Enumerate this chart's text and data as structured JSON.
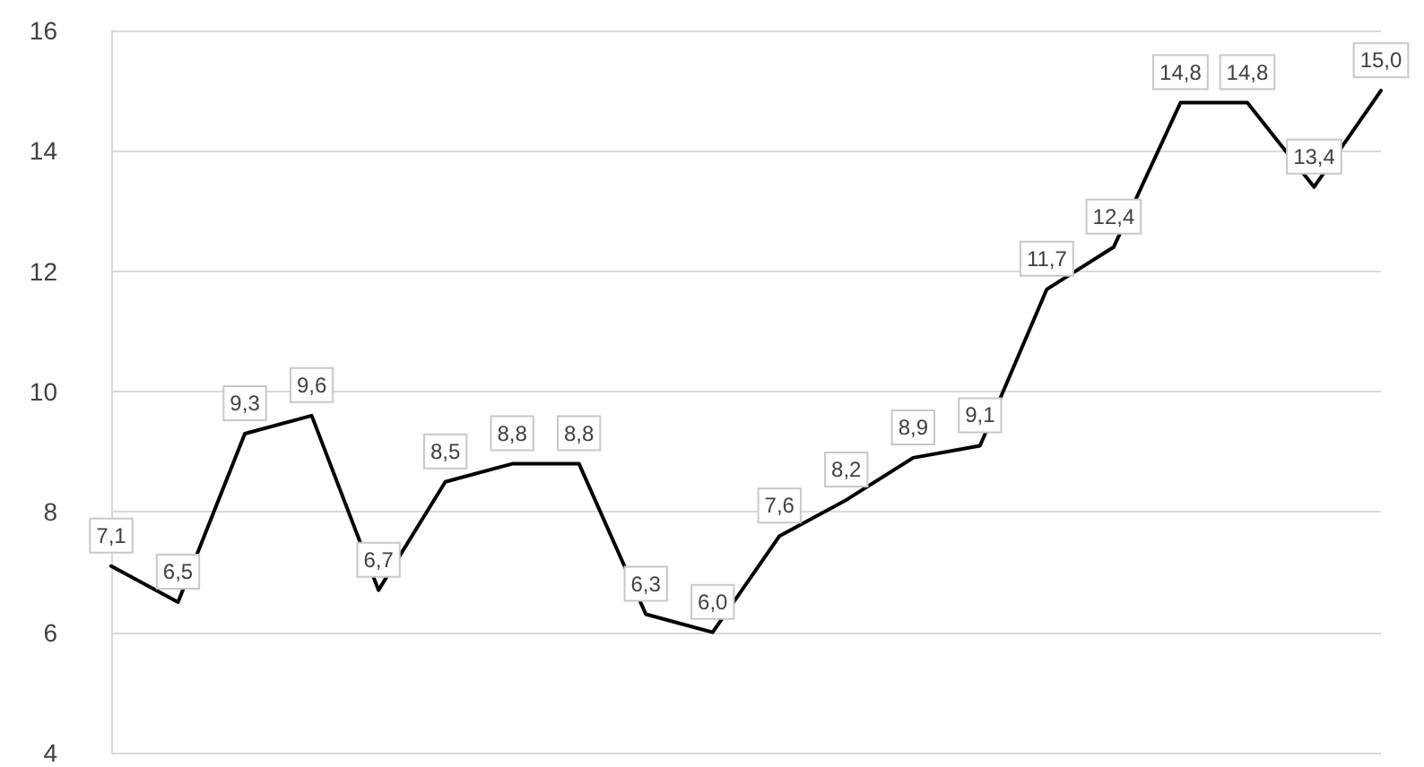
{
  "chart_data": {
    "type": "line",
    "categories": [
      null,
      null,
      null,
      null,
      null,
      null,
      null,
      null,
      null,
      null,
      null,
      null,
      null,
      null,
      null,
      null,
      null,
      null,
      null,
      null
    ],
    "series": [
      {
        "color": "#000000",
        "values": [
          7.1,
          6.5,
          9.3,
          9.6,
          6.7,
          8.5,
          8.8,
          8.8,
          6.3,
          6.0,
          7.6,
          8.2,
          8.9,
          9.1,
          11.7,
          12.4,
          14.8,
          14.8,
          13.4,
          15.0
        ],
        "value_labels": [
          "7,1",
          "6,5",
          "9,3",
          "9,6",
          "6,7",
          "8,5",
          "8,8",
          "8,8",
          "6,3",
          "6,0",
          "7,6",
          "8,2",
          "8,9",
          "9,1",
          "11,7",
          "12,4",
          "14,8",
          "14,8",
          "13,4",
          "15,0"
        ]
      }
    ],
    "ylim": [
      4,
      16
    ],
    "yticks": [
      4,
      6,
      8,
      10,
      12,
      14,
      16
    ],
    "grid": "y",
    "marker": "none",
    "line_style": "solid",
    "tick_labels": "y"
  }
}
